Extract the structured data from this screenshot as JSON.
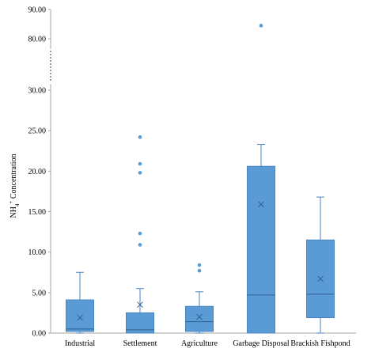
{
  "chart_data": {
    "type": "box",
    "ylabel": "NH",
    "ylabel_sup": "4",
    "ylabel_sup2": "+",
    "ylabel_rest": " Concentration",
    "axis_break": true,
    "y_ticks_upper": [
      "90.00",
      "80.00"
    ],
    "y_ticks_lower": [
      "30.00",
      "25.00",
      "20.00",
      "15.00",
      "10.00",
      "5.00",
      "0.00"
    ],
    "categories": [
      "Industrial",
      "Settlement",
      "Agriculture",
      "Garbage Disposal",
      "Brackish Fishpond"
    ],
    "boxes": [
      {
        "category": "Industrial",
        "min": 0.0,
        "q1": 0.2,
        "median": 0.5,
        "q3": 4.1,
        "max": 7.5,
        "mean": 1.9,
        "outliers": []
      },
      {
        "category": "Settlement",
        "min": 0.0,
        "q1": 0.0,
        "median": 0.4,
        "q3": 2.5,
        "max": 5.5,
        "mean": 3.5,
        "outliers": [
          10.9,
          12.3,
          19.8,
          20.9,
          24.2
        ]
      },
      {
        "category": "Agriculture",
        "min": 0.0,
        "q1": 0.2,
        "median": 1.4,
        "q3": 3.3,
        "max": 5.1,
        "mean": 2.0,
        "outliers": [
          7.7,
          8.4
        ]
      },
      {
        "category": "Garbage Disposal",
        "min": 0.0,
        "q1": 0.0,
        "median": 4.7,
        "q3": 20.6,
        "max": 23.3,
        "mean": 15.9,
        "outliers": [
          84.5
        ]
      },
      {
        "category": "Brackish Fishpond",
        "min": 0.0,
        "q1": 1.9,
        "median": 4.8,
        "q3": 11.5,
        "max": 16.8,
        "mean": 6.7,
        "outliers": []
      }
    ],
    "colors": {
      "box": "#5b9bd5",
      "edge": "#4a86c0",
      "whisker": "#4a86c0",
      "mean": "#2e5f8f",
      "axis": "#a6a6a6"
    }
  }
}
